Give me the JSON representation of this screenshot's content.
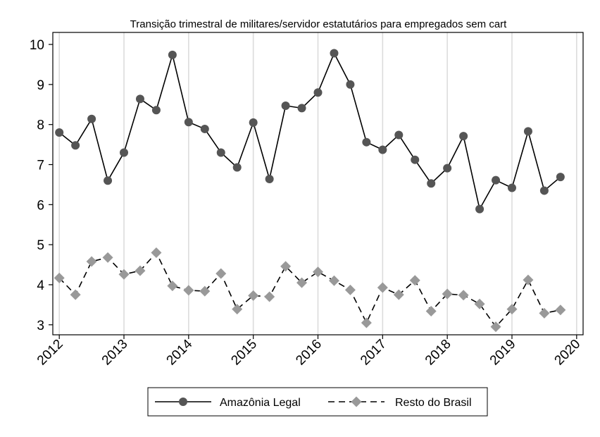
{
  "chart_data": {
    "type": "line",
    "title": "Transição trimestral de militares/servidor estatutários para empregados sem cart",
    "xlabel": "",
    "ylabel": "",
    "xlim": [
      2011.9,
      2020.1
    ],
    "ylim": [
      2.75,
      10.3
    ],
    "x_ticks": [
      "2012",
      "2013",
      "2014",
      "2015",
      "2016",
      "2017",
      "2018",
      "2019",
      "2020"
    ],
    "y_ticks": [
      3,
      4,
      5,
      6,
      7,
      8,
      9,
      10
    ],
    "grid": "vertical",
    "legend_position": "bottom",
    "x": [
      2012,
      2012.25,
      2012.5,
      2012.75,
      2013,
      2013.25,
      2013.5,
      2013.75,
      2014,
      2014.25,
      2014.5,
      2014.75,
      2015,
      2015.25,
      2015.5,
      2015.75,
      2016,
      2016.25,
      2016.5,
      2016.75,
      2017,
      2017.25,
      2017.5,
      2017.75,
      2018,
      2018.25,
      2018.5,
      2018.75,
      2019,
      2019.25,
      2019.5,
      2019.75
    ],
    "series": [
      {
        "name": "Amazônia Legal",
        "color": "#000000",
        "marker_color": "#555555",
        "marker": "circle",
        "dash": "solid",
        "values": [
          7.8,
          7.48,
          8.14,
          6.6,
          7.3,
          8.64,
          8.36,
          9.74,
          8.06,
          7.89,
          7.3,
          6.93,
          8.05,
          6.64,
          8.47,
          8.41,
          8.8,
          9.78,
          9.0,
          7.56,
          7.37,
          7.74,
          7.12,
          6.53,
          6.91,
          7.71,
          5.89,
          6.61,
          6.42,
          7.83,
          6.35,
          6.69
        ]
      },
      {
        "name": "Resto do Brasil",
        "color": "#000000",
        "marker_color": "#999999",
        "marker": "diamond",
        "dash": "dashed",
        "values": [
          4.17,
          3.75,
          4.58,
          4.68,
          4.26,
          4.35,
          4.8,
          3.97,
          3.86,
          3.84,
          4.28,
          3.39,
          3.73,
          3.7,
          4.46,
          4.05,
          4.32,
          4.1,
          3.87,
          3.05,
          3.93,
          3.75,
          4.11,
          3.34,
          3.77,
          3.74,
          3.52,
          2.95,
          3.39,
          4.12,
          3.29,
          3.37
        ]
      }
    ]
  }
}
